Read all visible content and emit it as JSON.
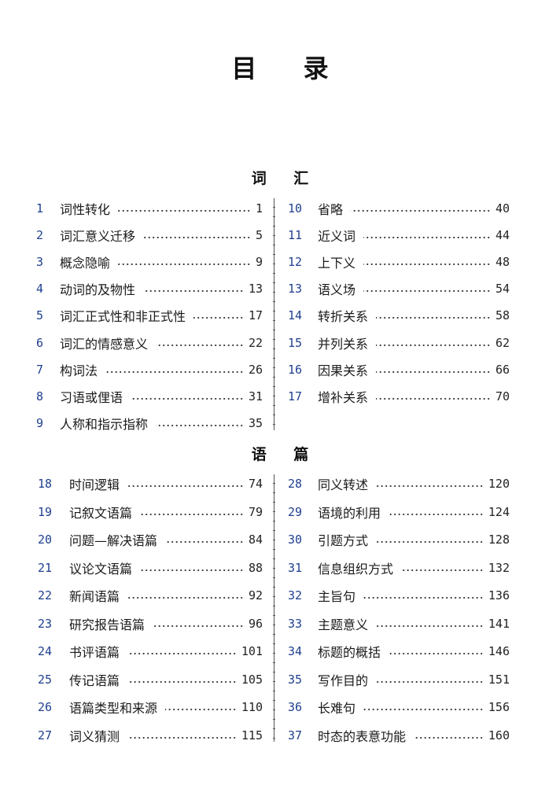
{
  "title": "目 录",
  "sections": [
    {
      "heading": "词 汇",
      "left": [
        {
          "num": "1",
          "title": "词性转化",
          "page": "1"
        },
        {
          "num": "2",
          "title": "词汇意义迁移",
          "page": "5"
        },
        {
          "num": "3",
          "title": "概念隐喻",
          "page": "9"
        },
        {
          "num": "4",
          "title": "动词的及物性",
          "page": "13"
        },
        {
          "num": "5",
          "title": "词汇正式性和非正式性",
          "page": "17"
        },
        {
          "num": "6",
          "title": "词汇的情感意义",
          "page": "22"
        },
        {
          "num": "7",
          "title": "构词法",
          "page": "26"
        },
        {
          "num": "8",
          "title": "习语或俚语",
          "page": "31"
        },
        {
          "num": "9",
          "title": "人称和指示指称",
          "page": "35"
        }
      ],
      "right": [
        {
          "num": "10",
          "title": "省略",
          "page": "40"
        },
        {
          "num": "11",
          "title": "近义词",
          "page": "44"
        },
        {
          "num": "12",
          "title": "上下义",
          "page": "48"
        },
        {
          "num": "13",
          "title": "语义场",
          "page": "54"
        },
        {
          "num": "14",
          "title": "转折关系",
          "page": "58"
        },
        {
          "num": "15",
          "title": "并列关系",
          "page": "62"
        },
        {
          "num": "16",
          "title": "因果关系",
          "page": "66"
        },
        {
          "num": "17",
          "title": "增补关系",
          "page": "70"
        }
      ]
    },
    {
      "heading": "语 篇",
      "left": [
        {
          "num": "18",
          "title": "时间逻辑",
          "page": "74"
        },
        {
          "num": "19",
          "title": "记叙文语篇",
          "page": "79"
        },
        {
          "num": "20",
          "title": "问题—解决语篇",
          "page": "84"
        },
        {
          "num": "21",
          "title": "议论文语篇",
          "page": "88"
        },
        {
          "num": "22",
          "title": "新闻语篇",
          "page": "92"
        },
        {
          "num": "23",
          "title": "研究报告语篇",
          "page": "96"
        },
        {
          "num": "24",
          "title": "书评语篇",
          "page": "101"
        },
        {
          "num": "25",
          "title": "传记语篇",
          "page": "105"
        },
        {
          "num": "26",
          "title": "语篇类型和来源",
          "page": "110"
        },
        {
          "num": "27",
          "title": "词义猜测",
          "page": "115"
        }
      ],
      "right": [
        {
          "num": "28",
          "title": "同义转述",
          "page": "120"
        },
        {
          "num": "29",
          "title": "语境的利用",
          "page": "124"
        },
        {
          "num": "30",
          "title": "引题方式",
          "page": "128"
        },
        {
          "num": "31",
          "title": "信息组织方式",
          "page": "132"
        },
        {
          "num": "32",
          "title": "主旨句",
          "page": "136"
        },
        {
          "num": "33",
          "title": "主题意义",
          "page": "141"
        },
        {
          "num": "34",
          "title": "标题的概括",
          "page": "146"
        },
        {
          "num": "35",
          "title": "写作目的",
          "page": "151"
        },
        {
          "num": "36",
          "title": "长难句",
          "page": "156"
        },
        {
          "num": "37",
          "title": "时态的表意功能",
          "page": "160"
        }
      ]
    }
  ]
}
